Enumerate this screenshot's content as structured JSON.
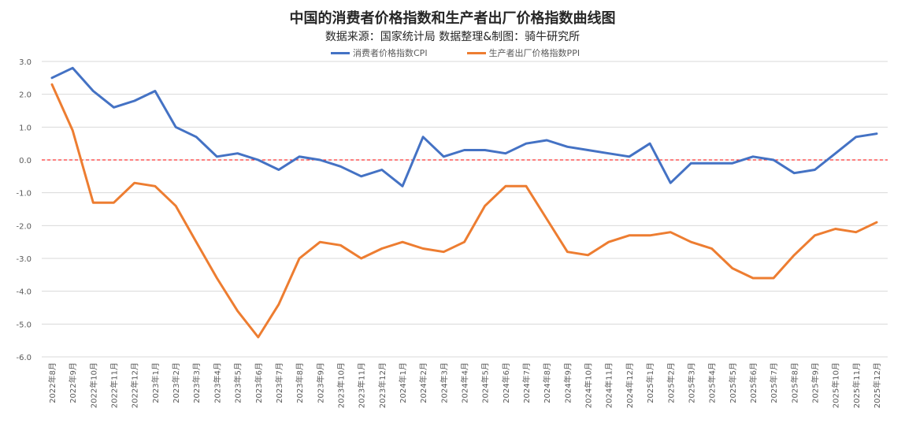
{
  "chart_data": {
    "type": "line",
    "title": "中国的消费者价格指数和生产者出厂价格指数曲线图",
    "subtitle": "数据来源：国家统计局  数据整理&制图：骑牛研究所",
    "categories": [
      "2022年8月",
      "2022年9月",
      "2022年10月",
      "2022年11月",
      "2022年12月",
      "2023年1月",
      "2023年2月",
      "2023年3月",
      "2023年4月",
      "2023年5月",
      "2023年6月",
      "2023年7月",
      "2023年8月",
      "2023年9月",
      "2023年10月",
      "2023年11月",
      "2023年12月",
      "2024年1月",
      "2024年2月",
      "2024年3月",
      "2024年4月",
      "2024年5月",
      "2024年6月",
      "2024年7月",
      "2024年8月",
      "2024年9月",
      "2024年10月",
      "2024年11月",
      "2024年12月",
      "2025年1月",
      "2025年2月",
      "2025年3月",
      "2025年4月",
      "2025年5月",
      "2025年6月",
      "2025年7月",
      "2025年8月",
      "2025年9月",
      "2025年10月",
      "2025年11月",
      "2025年12月"
    ],
    "series": [
      {
        "name": "消费者价格指数CPI",
        "color": "#4472C4",
        "values": [
          2.5,
          2.8,
          2.1,
          1.6,
          1.8,
          2.1,
          1.0,
          0.7,
          0.1,
          0.2,
          0.0,
          -0.3,
          0.1,
          0.0,
          -0.2,
          -0.5,
          -0.3,
          -0.8,
          0.7,
          0.1,
          0.3,
          0.3,
          0.2,
          0.5,
          0.6,
          0.4,
          0.3,
          0.2,
          0.1,
          0.5,
          -0.7,
          -0.1,
          -0.1,
          -0.1,
          0.1,
          0.0,
          -0.4,
          -0.3,
          0.2,
          0.7,
          0.8
        ]
      },
      {
        "name": "生产者出厂价格指数PPI",
        "color": "#ED7D31",
        "values": [
          2.3,
          0.9,
          -1.3,
          -1.3,
          -0.7,
          -0.8,
          -1.4,
          -2.5,
          -3.6,
          -4.6,
          -5.4,
          -4.4,
          -3.0,
          -2.5,
          -2.6,
          -3.0,
          -2.7,
          -2.5,
          -2.7,
          -2.8,
          -2.5,
          -1.4,
          -0.8,
          -0.8,
          -1.8,
          -2.8,
          -2.9,
          -2.5,
          -2.3,
          -2.3,
          -2.2,
          -2.5,
          -2.7,
          -3.3,
          -3.6,
          -3.6,
          -2.9,
          -2.3,
          -2.1,
          -2.2,
          -1.9
        ]
      }
    ],
    "yticks": [
      "3.0",
      "2.0",
      "1.0",
      "0.0",
      "-1.0",
      "-2.0",
      "-3.0",
      "-4.0",
      "-5.0",
      "-6.0"
    ],
    "ylim": [
      -6,
      3
    ],
    "reference_line": {
      "y": 0,
      "color": "#FF0000",
      "style": "dashed"
    },
    "grid": true,
    "legend_position": "top-center"
  }
}
